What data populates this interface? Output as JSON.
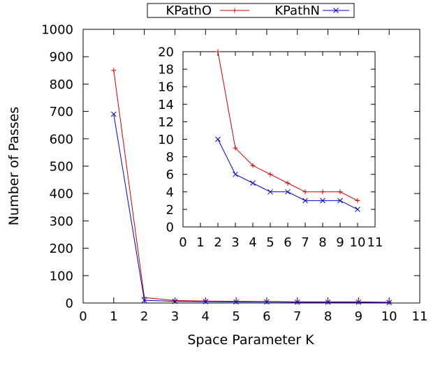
{
  "chart_data": [
    {
      "type": "line",
      "title": "",
      "xlabel": "Space Parameter K",
      "ylabel": "Number of Passes",
      "xlim": [
        0,
        11
      ],
      "ylim": [
        0,
        1000
      ],
      "xticks": [
        "0",
        "1",
        "2",
        "3",
        "4",
        "5",
        "6",
        "7",
        "8",
        "9",
        "10",
        "11"
      ],
      "yticks": [
        "0",
        "100",
        "200",
        "300",
        "400",
        "500",
        "600",
        "700",
        "800",
        "900",
        "1000"
      ],
      "legend": {
        "placement": "top-center",
        "entries": [
          "KPathO",
          "KPathN"
        ]
      },
      "grid": false,
      "series": [
        {
          "name": "KPathO",
          "color": "#cc0000",
          "marker": "plus",
          "x": [
            1,
            2,
            3,
            4,
            5,
            6,
            7,
            8,
            9,
            10
          ],
          "y": [
            850,
            20,
            9,
            7,
            6,
            5,
            4,
            4,
            4,
            3
          ]
        },
        {
          "name": "KPathN",
          "color": "#0000cc",
          "marker": "cross",
          "x": [
            1,
            2,
            3,
            4,
            5,
            6,
            7,
            8,
            9,
            10
          ],
          "y": [
            690,
            10,
            6,
            5,
            4,
            4,
            3,
            3,
            3,
            2
          ]
        }
      ]
    },
    {
      "type": "line",
      "title": "",
      "xlabel": "",
      "ylabel": "",
      "xlim": [
        0,
        11
      ],
      "ylim": [
        0,
        20
      ],
      "xticks": [
        "0",
        "1",
        "2",
        "3",
        "4",
        "5",
        "6",
        "7",
        "8",
        "9",
        "10",
        "11"
      ],
      "yticks": [
        "0",
        "2",
        "4",
        "6",
        "8",
        "10",
        "12",
        "14",
        "16",
        "18",
        "20"
      ],
      "grid": false,
      "series": [
        {
          "name": "KPathO",
          "color": "#cc0000",
          "marker": "plus",
          "x": [
            2,
            3,
            4,
            5,
            6,
            7,
            8,
            9,
            10
          ],
          "y": [
            20,
            9,
            7,
            6,
            5,
            4,
            4,
            4,
            3
          ]
        },
        {
          "name": "KPathN",
          "color": "#0000cc",
          "marker": "cross",
          "x": [
            2,
            3,
            4,
            5,
            6,
            7,
            8,
            9,
            10
          ],
          "y": [
            10,
            6,
            5,
            4,
            4,
            3,
            3,
            3,
            2
          ]
        }
      ]
    }
  ]
}
